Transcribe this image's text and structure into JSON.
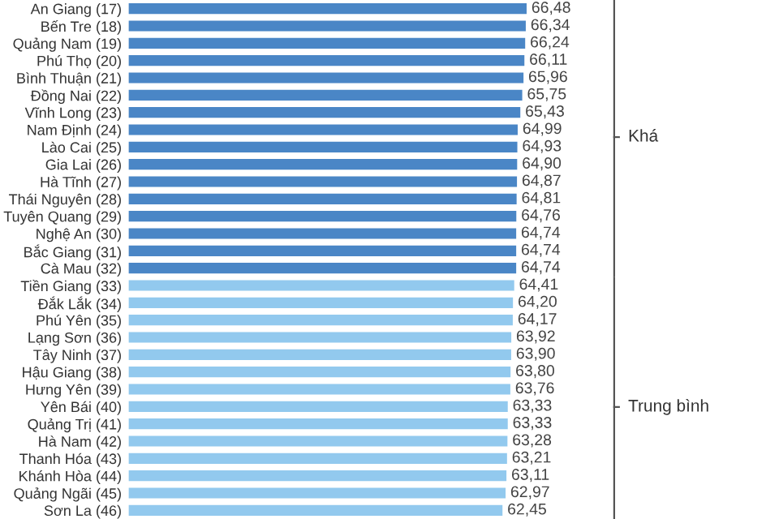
{
  "chart_data": {
    "type": "bar",
    "orientation": "horizontal",
    "categories": [
      "An Giang (17)",
      "Bến Tre (18)",
      "Quảng Nam (19)",
      "Phú Thọ (20)",
      "Bình Thuận (21)",
      "Đồng Nai (22)",
      "Vĩnh Long (23)",
      "Nam Định (24)",
      "Lào Cai (25)",
      "Gia Lai (26)",
      "Hà Tĩnh (27)",
      "Thái Nguyên (28)",
      "Tuyên Quang (29)",
      "Nghệ An (30)",
      "Bắc Giang (31)",
      "Cà Mau (32)",
      "Tiền Giang (33)",
      "Đắk Lắk (34)",
      "Phú Yên (35)",
      "Lạng Sơn (36)",
      "Tây Ninh (37)",
      "Hậu Giang (38)",
      "Hưng Yên (39)",
      "Yên Bái (40)",
      "Quảng Trị (41)",
      "Hà Nam (42)",
      "Thanh Hóa (43)",
      "Khánh Hòa (44)",
      "Quảng Ngãi (45)",
      "Sơn La (46)"
    ],
    "values": [
      66.48,
      66.34,
      66.24,
      66.11,
      65.96,
      65.75,
      65.43,
      64.99,
      64.93,
      64.9,
      64.87,
      64.81,
      64.76,
      64.74,
      64.74,
      64.74,
      64.41,
      64.2,
      64.17,
      63.92,
      63.9,
      63.8,
      63.76,
      63.33,
      63.33,
      63.28,
      63.21,
      63.11,
      62.97,
      62.45
    ],
    "value_labels": [
      "66,48",
      "66,34",
      "66,24",
      "66,11",
      "65,96",
      "65,75",
      "65,43",
      "64,99",
      "64,93",
      "64,90",
      "64,87",
      "64,81",
      "64,76",
      "64,74",
      "64,74",
      "64,74",
      "64,41",
      "64,20",
      "64,17",
      "63,92",
      "63,90",
      "63,80",
      "63,76",
      "63,33",
      "63,33",
      "63,28",
      "63,21",
      "63,11",
      "62,97",
      "62,45"
    ],
    "colors": [
      "#4a86c6",
      "#4a86c6",
      "#4a86c6",
      "#4a86c6",
      "#4a86c6",
      "#4a86c6",
      "#4a86c6",
      "#4a86c6",
      "#4a86c6",
      "#4a86c6",
      "#4a86c6",
      "#4a86c6",
      "#4a86c6",
      "#4a86c6",
      "#4a86c6",
      "#4a86c6",
      "#92c9ee",
      "#92c9ee",
      "#92c9ee",
      "#92c9ee",
      "#92c9ee",
      "#92c9ee",
      "#92c9ee",
      "#92c9ee",
      "#92c9ee",
      "#92c9ee",
      "#92c9ee",
      "#92c9ee",
      "#92c9ee",
      "#92c9ee"
    ],
    "annotations": [
      "Khá",
      "Trung bình"
    ]
  }
}
